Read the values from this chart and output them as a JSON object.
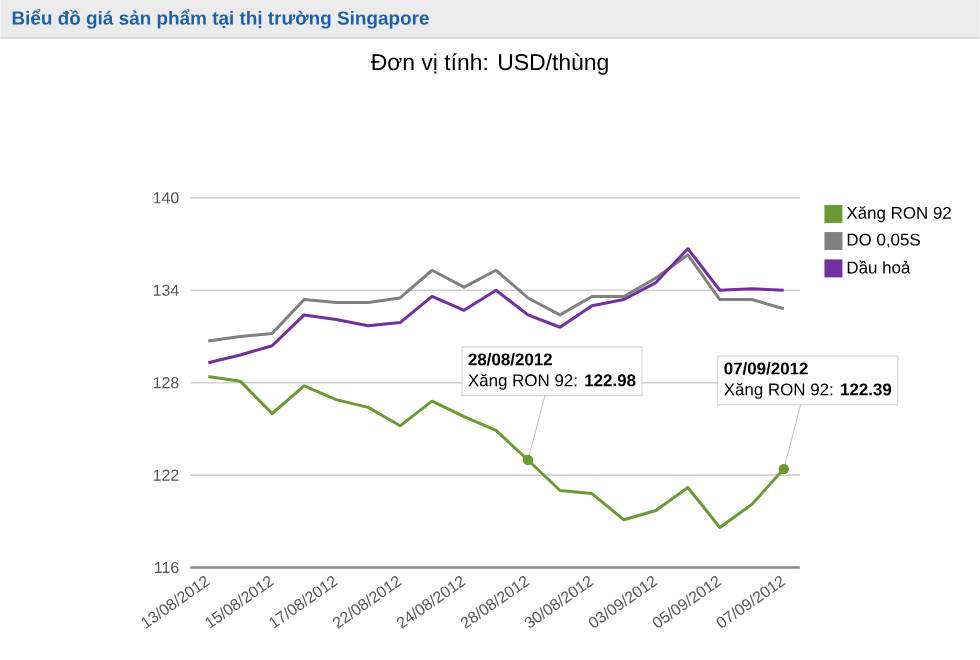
{
  "chart_data": {
    "type": "line",
    "title": "Biểu đồ giá sản phẩm tại thị trường Singapore",
    "subtitle": "Đơn vị tính: USD/thùng",
    "categories": [
      "13/08/2012",
      null,
      "15/08/2012",
      null,
      "17/08/2012",
      null,
      "22/08/2012",
      null,
      "24/08/2012",
      null,
      "28/08/2012",
      null,
      "30/08/2012",
      null,
      "03/09/2012",
      null,
      "05/09/2012",
      null,
      "07/09/2012"
    ],
    "series": [
      {
        "name": "Xăng RON 92",
        "color": "#6b9a33",
        "values": [
          128.4,
          128.1,
          126.0,
          127.8,
          126.9,
          126.4,
          125.2,
          126.8,
          125.8,
          124.9,
          122.98,
          121.0,
          120.8,
          119.1,
          119.7,
          121.2,
          118.6,
          120.1,
          122.39
        ]
      },
      {
        "name": "DO 0,05S",
        "color": "#808080",
        "values": [
          130.7,
          131.0,
          131.2,
          133.4,
          133.2,
          133.2,
          133.5,
          135.3,
          134.2,
          135.3,
          133.5,
          132.4,
          133.6,
          133.6,
          134.8,
          136.3,
          133.4,
          133.4,
          132.8
        ]
      },
      {
        "name": "Dầu hoả",
        "color": "#7030a0",
        "values": [
          129.3,
          129.8,
          130.4,
          132.4,
          132.1,
          131.7,
          131.9,
          133.6,
          132.7,
          134.0,
          132.4,
          131.6,
          133.0,
          133.4,
          134.5,
          136.7,
          134.0,
          134.1,
          134.0
        ]
      }
    ],
    "annotations": [
      {
        "text": "**28/08/2012**",
        "x": "28/08/2012",
        "y": 122.98
      },
      {
        "text": "Xăng RON 92: **122.98**",
        "x": "28/08/2012",
        "y": 122.98
      },
      {
        "text": "**07/09/2012**",
        "x": "07/09/2012",
        "y": 122.39
      },
      {
        "text": "Xăng RON 92: **122.39**",
        "x": "07/09/2012",
        "y": 122.39
      }
    ],
    "ylim": [
      116,
      140
    ],
    "yticks": [
      116,
      122,
      128,
      134,
      140
    ],
    "grid": "y",
    "legend": "top right",
    "marker": "none",
    "line_style": "solid"
  }
}
